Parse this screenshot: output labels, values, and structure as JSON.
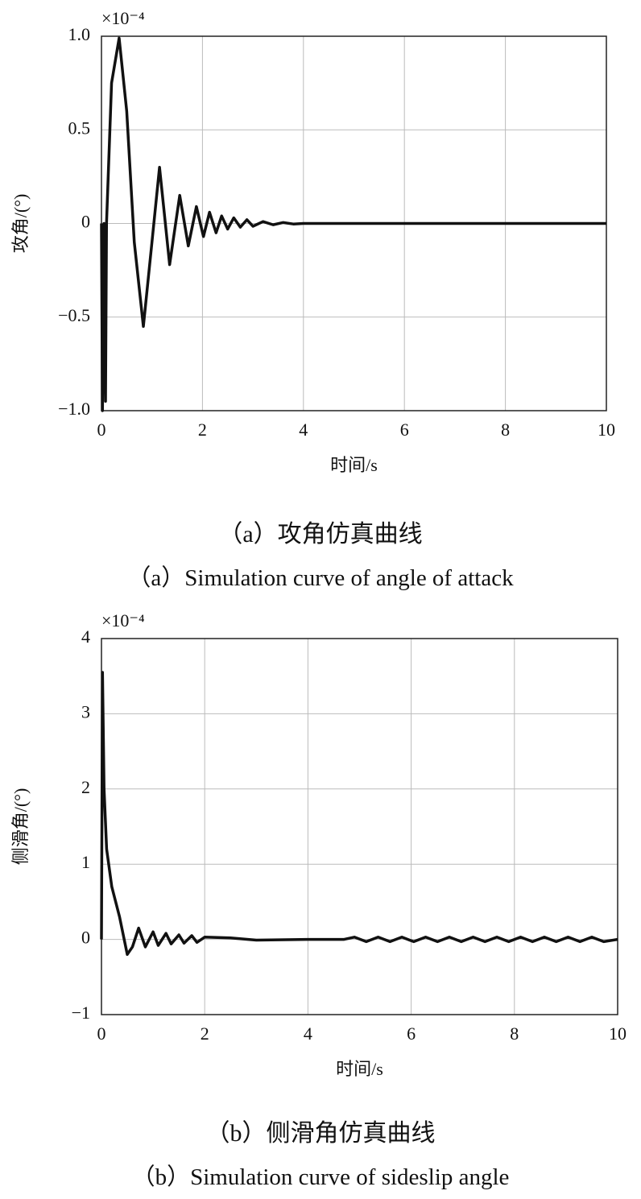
{
  "chart_data": [
    {
      "type": "line",
      "x_label": "时间/s",
      "y_label": "攻角/(°)",
      "axis_multiplier": "×10⁻⁴",
      "caption": "（a）攻角仿真曲线",
      "caption_en": "（a）Simulation curve of angle of attack",
      "xlim": [
        0,
        10
      ],
      "xticks": [
        0,
        2,
        4,
        6,
        8,
        10
      ],
      "ylim": [
        -1,
        1
      ],
      "yticks": [
        {
          "value": -1,
          "label": "−1.0"
        },
        {
          "value": -0.5,
          "label": "−0.5"
        },
        0,
        {
          "value": 0.5,
          "label": "0.5"
        },
        {
          "value": 1,
          "label": "1.0"
        }
      ],
      "grid": true,
      "series": [
        {
          "color": "#111111",
          "x": [
            0,
            0.02,
            0.05,
            0.08,
            0.1,
            0.2,
            0.35,
            0.5,
            0.65,
            0.83,
            1.0,
            1.15,
            1.35,
            1.55,
            1.72,
            1.88,
            2.02,
            2.14,
            2.27,
            2.38,
            2.5,
            2.62,
            2.75,
            2.88,
            3.0,
            3.2,
            3.4,
            3.6,
            3.8,
            4.0,
            10
          ],
          "values": [
            0,
            -1.0,
            0,
            -0.95,
            0,
            0.75,
            0.99,
            0.6,
            -0.1,
            -0.55,
            -0.1,
            0.3,
            -0.22,
            0.15,
            -0.12,
            0.09,
            -0.07,
            0.06,
            -0.05,
            0.04,
            -0.03,
            0.03,
            -0.02,
            0.02,
            -0.015,
            0.01,
            -0.007,
            0.005,
            -0.003,
            0,
            0
          ]
        }
      ]
    },
    {
      "type": "line",
      "x_label": "时间/s",
      "y_label": "侧滑角/(°)",
      "axis_multiplier": "×10⁻⁴",
      "caption": "（b）侧滑角仿真曲线",
      "caption_en": "（b）Simulation curve of sideslip angle",
      "xlim": [
        0,
        10
      ],
      "xticks": [
        0,
        2,
        4,
        6,
        8,
        10
      ],
      "ylim": [
        -1,
        4
      ],
      "yticks": [
        {
          "value": -1,
          "label": "−1"
        },
        0,
        1,
        2,
        3,
        4
      ],
      "grid": true,
      "series": [
        {
          "color": "#111111",
          "x": [
            0,
            0.02,
            0.05,
            0.1,
            0.2,
            0.35,
            0.5,
            0.6,
            0.72,
            0.85,
            1.0,
            1.1,
            1.25,
            1.35,
            1.5,
            1.6,
            1.75,
            1.85,
            2.0,
            2.5,
            3.0,
            4.0,
            4.7,
            4.9,
            5.13,
            5.36,
            5.59,
            5.82,
            6.05,
            6.28,
            6.51,
            6.74,
            6.97,
            7.2,
            7.43,
            7.66,
            7.89,
            8.12,
            8.35,
            8.58,
            8.81,
            9.04,
            9.27,
            9.5,
            9.73,
            10
          ],
          "values": [
            0,
            3.55,
            2.0,
            1.2,
            0.7,
            0.3,
            -0.2,
            -0.1,
            0.15,
            -0.1,
            0.1,
            -0.08,
            0.08,
            -0.06,
            0.06,
            -0.05,
            0.05,
            -0.04,
            0.03,
            0.02,
            -0.01,
            0,
            0,
            0.03,
            -0.03,
            0.03,
            -0.03,
            0.03,
            -0.03,
            0.03,
            -0.03,
            0.03,
            -0.03,
            0.03,
            -0.03,
            0.03,
            -0.03,
            0.03,
            -0.03,
            0.03,
            -0.03,
            0.03,
            -0.03,
            0.03,
            -0.03,
            0
          ]
        }
      ]
    }
  ]
}
